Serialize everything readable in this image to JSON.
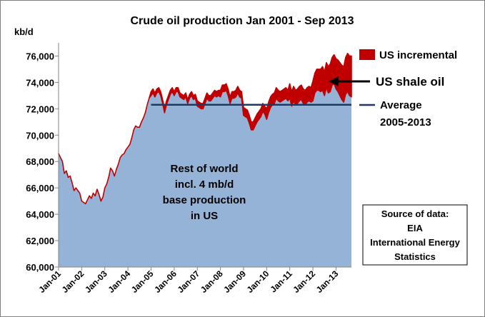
{
  "chart_data": {
    "type": "area",
    "title": "Crude oil production Jan 2001 - Sep 2013",
    "ylabel": "kb/d",
    "ylim": [
      60000,
      77000
    ],
    "yticks": [
      60000,
      62000,
      64000,
      66000,
      68000,
      70000,
      72000,
      74000,
      76000
    ],
    "ytick_labels": [
      "60,000",
      "62,000",
      "64,000",
      "66,000",
      "68,000",
      "70,000",
      "72,000",
      "74,000",
      "76,000"
    ],
    "xticks": [
      "Jan-01",
      "Jan-02",
      "Jan-03",
      "Jan-04",
      "Jan-05",
      "Jan-06",
      "Jan-07",
      "Jan-08",
      "Jan-09",
      "Jan-10",
      "Jan-11",
      "Jan-12",
      "Jan-13"
    ],
    "x_start": "2001-01",
    "x_end": "2013-09",
    "series": [
      {
        "name": "Rest of world incl. 4 mb/d base production in US",
        "color": "#95B3D7",
        "values": [
          68600,
          68300,
          68000,
          67100,
          67300,
          66800,
          66900,
          66400,
          65800,
          66000,
          65800,
          65600,
          65000,
          64900,
          64800,
          65100,
          65400,
          65200,
          65600,
          65400,
          65900,
          65500,
          65000,
          65300,
          66000,
          66300,
          66800,
          67500,
          67300,
          66900,
          67400,
          67800,
          68300,
          68500,
          68600,
          68900,
          69100,
          69300,
          69800,
          70400,
          70700,
          70600,
          70600,
          71000,
          71300,
          71700,
          72300,
          72800,
          73000,
          73200,
          72900,
          73200,
          73300,
          73000,
          72400,
          71700,
          72300,
          72700,
          73100,
          73300,
          73000,
          73300,
          73300,
          72900,
          72800,
          72700,
          72900,
          72400,
          72800,
          73000,
          72700,
          72800,
          72200,
          72100,
          72000,
          72000,
          72400,
          72800,
          72600,
          72600,
          72800,
          73000,
          72900,
          73000,
          72900,
          73300,
          73300,
          73400,
          73000,
          72400,
          72800,
          72800,
          72900,
          73200,
          72900,
          72800,
          71500,
          71400,
          71300,
          70900,
          70400,
          70400,
          70700,
          71000,
          71200,
          71400,
          71800,
          71600,
          71200,
          71700,
          72100,
          72300,
          72400,
          72800,
          72600,
          72500,
          72600,
          72700,
          72800,
          72600,
          72800,
          72200,
          72600,
          72300,
          72400,
          72600,
          72700,
          72400,
          72300,
          72500,
          72600,
          72500,
          72600,
          73200,
          73400,
          73400,
          73300,
          73400,
          73000,
          73600,
          73200,
          73300,
          73800,
          73900,
          73500,
          73300,
          73000,
          72700,
          72500,
          73100,
          73300,
          73000,
          72900
        ]
      },
      {
        "name": "US incremental",
        "color": "#C00000",
        "values": [
          0,
          0,
          0,
          0,
          0,
          0,
          0,
          0,
          0,
          0,
          0,
          0,
          0,
          0,
          0,
          0,
          0,
          0,
          0,
          0,
          0,
          0,
          0,
          0,
          0,
          0,
          0,
          0,
          0,
          0,
          0,
          0,
          0,
          0,
          0,
          0,
          0,
          0,
          0,
          0,
          0,
          0,
          0,
          0,
          0,
          0,
          0,
          0,
          300,
          300,
          300,
          300,
          300,
          300,
          300,
          300,
          300,
          300,
          300,
          300,
          300,
          300,
          300,
          300,
          300,
          300,
          300,
          300,
          300,
          300,
          300,
          300,
          400,
          400,
          400,
          400,
          400,
          400,
          400,
          400,
          400,
          400,
          400,
          400,
          500,
          500,
          500,
          500,
          500,
          500,
          500,
          500,
          500,
          500,
          500,
          500,
          600,
          600,
          600,
          600,
          600,
          600,
          600,
          600,
          600,
          600,
          600,
          600,
          800,
          800,
          800,
          800,
          800,
          800,
          800,
          800,
          800,
          800,
          800,
          800,
          1100,
          1100,
          1100,
          1100,
          1100,
          1100,
          1100,
          1100,
          1100,
          1100,
          1100,
          1100,
          1500,
          1500,
          1600,
          1600,
          1700,
          1800,
          1800,
          1900,
          2000,
          2100,
          2100,
          2200,
          2300,
          2400,
          2500,
          2600,
          2700,
          2800,
          2900,
          3000,
          3100
        ]
      },
      {
        "name": "Average 2005-2013",
        "color": "#1F3864",
        "value": 72300,
        "x_range": [
          "2005-01",
          "2013-09"
        ]
      }
    ],
    "legend": {
      "label": "US incremental",
      "color": "#C00000",
      "position": "top-right"
    },
    "annotations": {
      "shale": "US shale oil",
      "average_line1": "Average",
      "average_line2": "2005-2013",
      "base_line1": "Rest of world",
      "base_line2": "incl. 4 mb/d",
      "base_line3": "base production",
      "base_line4": "in US",
      "source_line1": "Source of data:",
      "source_line2": "EIA",
      "source_line3": "International Energy",
      "source_line4": "Statistics"
    },
    "grid": false
  }
}
